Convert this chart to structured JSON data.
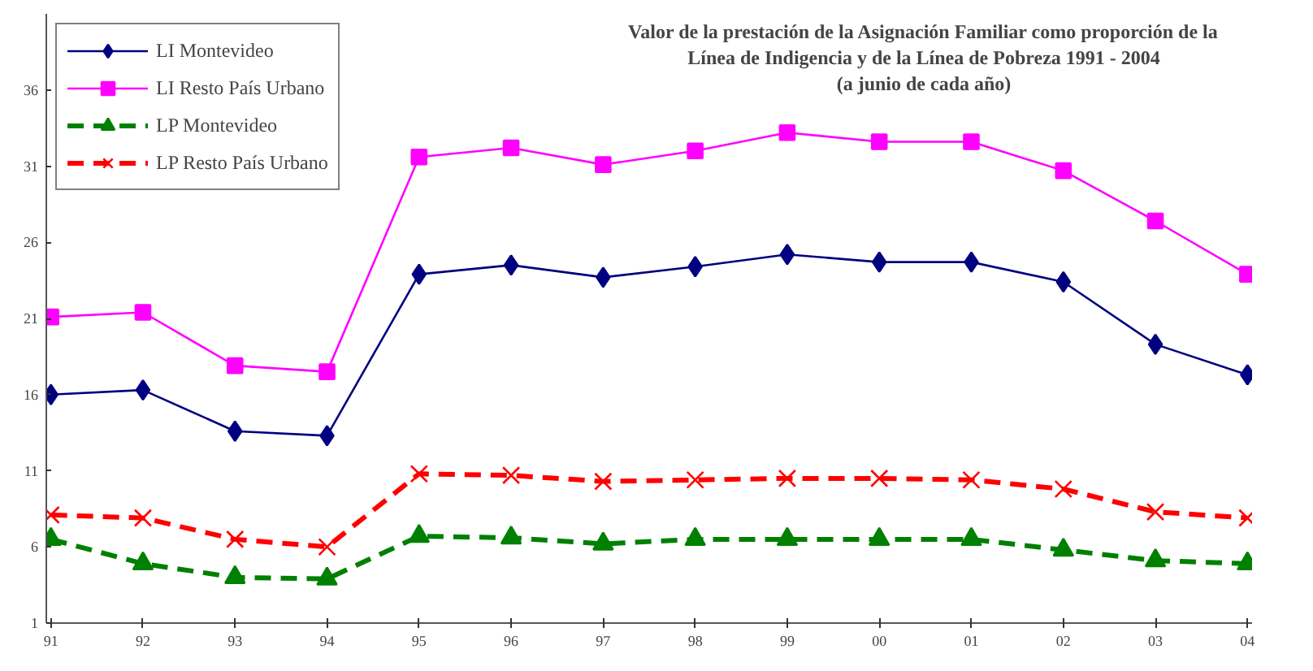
{
  "chart_data": {
    "type": "line",
    "title": "Valor de la prestación de la Asignación Familiar como proporción de la Línea de Indigencia y de la Línea de Pobreza 1991 - 2004",
    "subtitle": "(a junio de cada año)",
    "categories": [
      "91",
      "92",
      "93",
      "94",
      "95",
      "96",
      "97",
      "98",
      "99",
      "00",
      "01",
      "02",
      "03",
      "04"
    ],
    "ylim": [
      1,
      41
    ],
    "yticks": [
      1,
      6,
      11,
      16,
      21,
      26,
      31,
      36
    ],
    "grid": false,
    "legend": "top left",
    "series": [
      {
        "name": "LI Montevideo",
        "color": "#000080",
        "marker": "diamond",
        "line_style": "solid",
        "values": [
          16.0,
          16.3,
          13.6,
          13.3,
          23.9,
          24.5,
          23.7,
          24.4,
          25.2,
          24.7,
          24.7,
          23.4,
          19.3,
          17.3
        ]
      },
      {
        "name": "LI Resto País Urbano",
        "color": "#ff00ff",
        "marker": "square",
        "line_style": "solid",
        "values": [
          21.1,
          21.4,
          17.9,
          17.5,
          31.6,
          32.2,
          31.1,
          32.0,
          33.2,
          32.6,
          32.6,
          30.7,
          27.4,
          23.9
        ]
      },
      {
        "name": "LP Montevideo",
        "color": "#008000",
        "marker": "triangle",
        "line_style": "dashed",
        "values": [
          6.5,
          4.9,
          4.0,
          3.9,
          6.7,
          6.6,
          6.2,
          6.5,
          6.5,
          6.5,
          6.5,
          5.8,
          5.1,
          4.9
        ]
      },
      {
        "name": "LP Resto País Urbano",
        "color": "#ff0000",
        "marker": "cross",
        "line_style": "dashed",
        "values": [
          8.1,
          7.9,
          6.5,
          6.0,
          10.8,
          10.7,
          10.3,
          10.4,
          10.5,
          10.5,
          10.4,
          9.8,
          8.3,
          7.9
        ]
      }
    ]
  }
}
